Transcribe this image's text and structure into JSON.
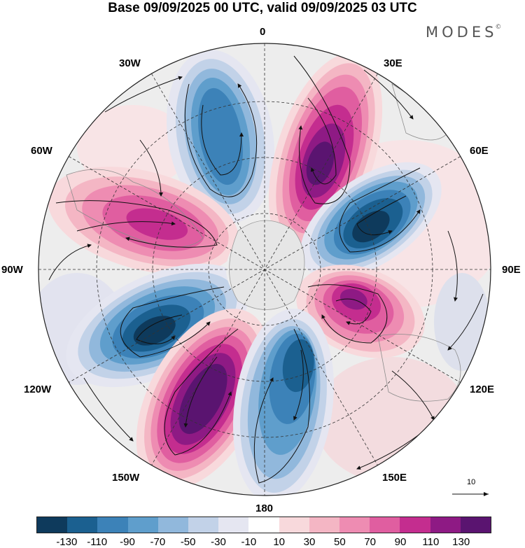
{
  "title": "Base 09/09/2025 00 UTC, valid 09/09/2025 03 UTC",
  "brand": {
    "name": "MODES",
    "mark": "©"
  },
  "longitude_labels": {
    "lon0": "0",
    "lon30e": "30E",
    "lon60e": "60E",
    "lon90e": "90E",
    "lon120e": "120E",
    "lon150e": "150E",
    "lon180": "180",
    "lon150w": "150W",
    "lon120w": "120W",
    "lon90w": "90W",
    "lon60w": "60W",
    "lon30w": "30W"
  },
  "reference_vector": {
    "label": "10"
  },
  "colors": {
    "neg130": "#0e3a5c",
    "neg110": "#1b6090",
    "neg90": "#3c82b8",
    "neg70": "#5f9ecc",
    "neg50": "#91b8dc",
    "neg30": "#c2d2e8",
    "neg10": "#e5e6f1",
    "zero": "#ffffff",
    "pos10": "#f8d9dc",
    "pos30": "#f4b6c4",
    "pos50": "#ee8cb2",
    "pos70": "#e05ea0",
    "pos90": "#c42d8f",
    "pos110": "#8e1a84",
    "pos130": "#5a1470",
    "background_field": "#ededed",
    "land": "#d8d8d8"
  },
  "colorbar": {
    "segments": [
      "#0e3a5c",
      "#1b6090",
      "#3c82b8",
      "#5f9ecc",
      "#91b8dc",
      "#c2d2e8",
      "#e5e6f1",
      "#ffffff",
      "#f8d9dc",
      "#f4b6c4",
      "#ee8cb2",
      "#e05ea0",
      "#c42d8f",
      "#8e1a84",
      "#5a1470"
    ],
    "ticks": [
      "-130",
      "-110",
      "-90",
      "-70",
      "-50",
      "-30",
      "-10",
      "10",
      "30",
      "50",
      "70",
      "90",
      "110",
      "130"
    ]
  }
}
